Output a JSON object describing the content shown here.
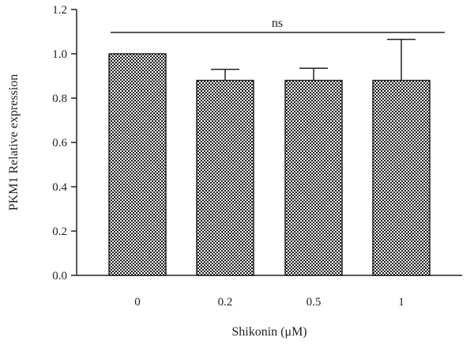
{
  "chart_data": {
    "type": "bar",
    "categories": [
      "0",
      "0.2",
      "0.5",
      "1"
    ],
    "values": [
      1.0,
      0.88,
      0.88,
      0.88
    ],
    "error_upper": [
      1.0,
      0.93,
      0.935,
      1.065
    ],
    "xlabel": "Shikonin (μM)",
    "ylabel": "PKM1 Relative expression",
    "ylim": [
      0,
      1.2
    ],
    "yticks": [
      "0.0",
      "0.2",
      "0.4",
      "0.6",
      "0.8",
      "1.0",
      "1.2"
    ],
    "significance": {
      "label": "ns",
      "from_category": "0",
      "to_category": "1"
    },
    "grid": false,
    "legend": "none"
  }
}
